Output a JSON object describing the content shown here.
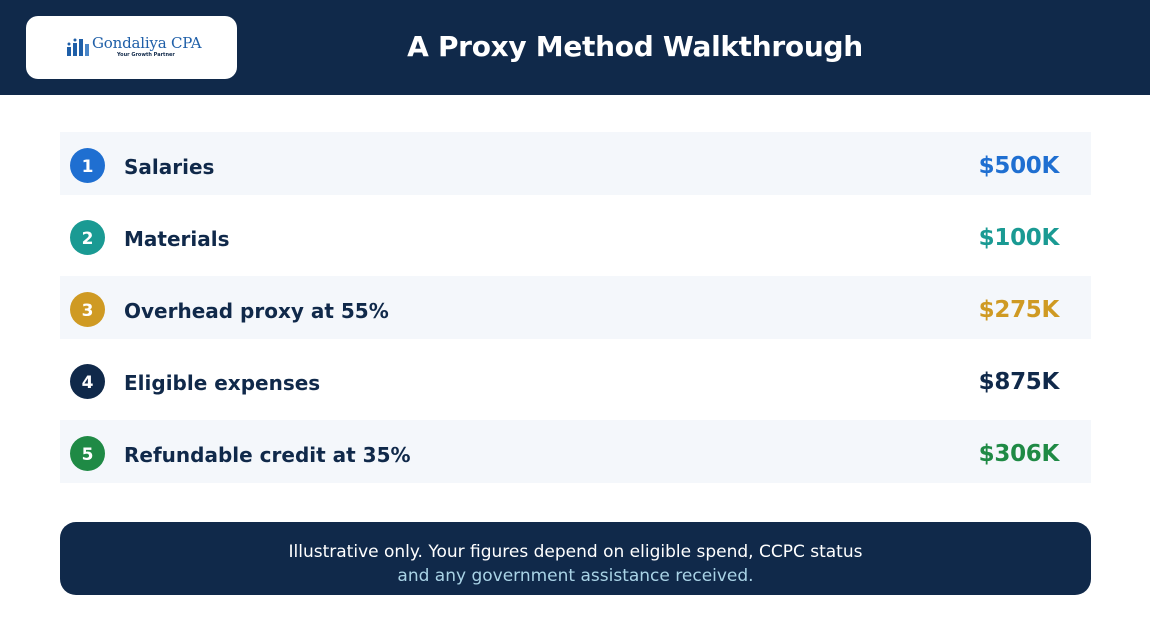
{
  "header": {
    "logo": {
      "name": "Gondaliya CPA",
      "tagline": "Your Growth Partner",
      "mark_color": "#1f5fa8"
    },
    "title": "A Proxy Method Walkthrough"
  },
  "rows": [
    {
      "number": "1",
      "label": "Salaries",
      "amount": "$500K",
      "color": "#1f6fd1",
      "shaded": true
    },
    {
      "number": "2",
      "label": "Materials",
      "amount": "$100K",
      "color": "#1a9a93",
      "shaded": false
    },
    {
      "number": "3",
      "label": "Overhead proxy at 55%",
      "amount": "$275K",
      "color": "#cf9a23",
      "shaded": true
    },
    {
      "number": "4",
      "label": "Eligible expenses",
      "amount": "$875K",
      "color": "#10294a",
      "shaded": false
    },
    {
      "number": "5",
      "label": "Refundable credit at 35%",
      "amount": "$306K",
      "color": "#1f8a45",
      "shaded": true
    }
  ],
  "note": {
    "line1": "Illustrative only. Your figures depend on eligible spend, CCPC status",
    "line2": "and any government assistance received."
  }
}
